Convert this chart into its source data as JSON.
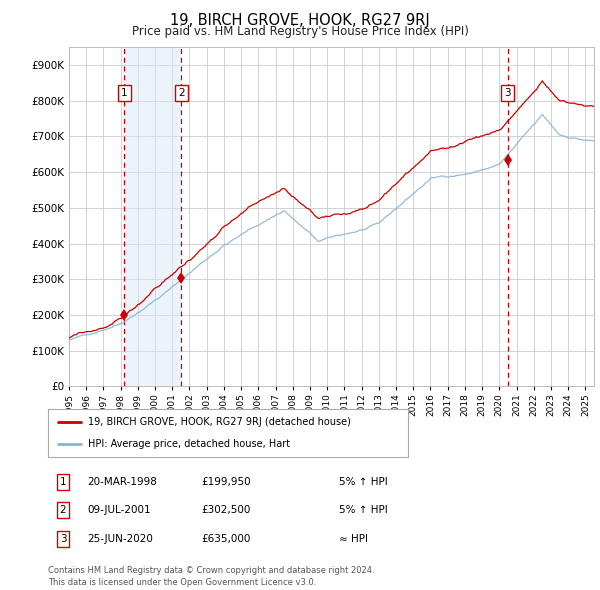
{
  "title": "19, BIRCH GROVE, HOOK, RG27 9RJ",
  "subtitle": "Price paid vs. HM Land Registry's House Price Index (HPI)",
  "ylim": [
    0,
    950000
  ],
  "yticks": [
    0,
    100000,
    200000,
    300000,
    400000,
    500000,
    600000,
    700000,
    800000,
    900000
  ],
  "ytick_labels": [
    "£0",
    "£100K",
    "£200K",
    "£300K",
    "£400K",
    "£500K",
    "£600K",
    "£700K",
    "£800K",
    "£900K"
  ],
  "sale_points": [
    {
      "year": 1998.22,
      "price": 199950,
      "label": "1"
    },
    {
      "year": 2001.52,
      "price": 302500,
      "label": "2"
    },
    {
      "year": 2020.48,
      "price": 635000,
      "label": "3"
    }
  ],
  "sale_annotations": [
    {
      "label": "1",
      "date": "20-MAR-1998",
      "price": "£199,950",
      "rel": "5% ↑ HPI"
    },
    {
      "label": "2",
      "date": "09-JUL-2001",
      "price": "£302,500",
      "rel": "5% ↑ HPI"
    },
    {
      "label": "3",
      "date": "25-JUN-2020",
      "price": "£635,000",
      "rel": "≈ HPI"
    }
  ],
  "line_color_red": "#cc0000",
  "line_color_blue": "#8ab4d4",
  "shade_color": "#d6e8f5",
  "dashed_line_color": "#cc0000",
  "background_color": "#ffffff",
  "grid_color": "#cccccc",
  "legend_label_red": "19, BIRCH GROVE, HOOK, RG27 9RJ (detached house)",
  "legend_label_blue": "HPI: Average price, detached house, Hart",
  "footer_text": "Contains HM Land Registry data © Crown copyright and database right 2024.\nThis data is licensed under the Open Government Licence v3.0."
}
